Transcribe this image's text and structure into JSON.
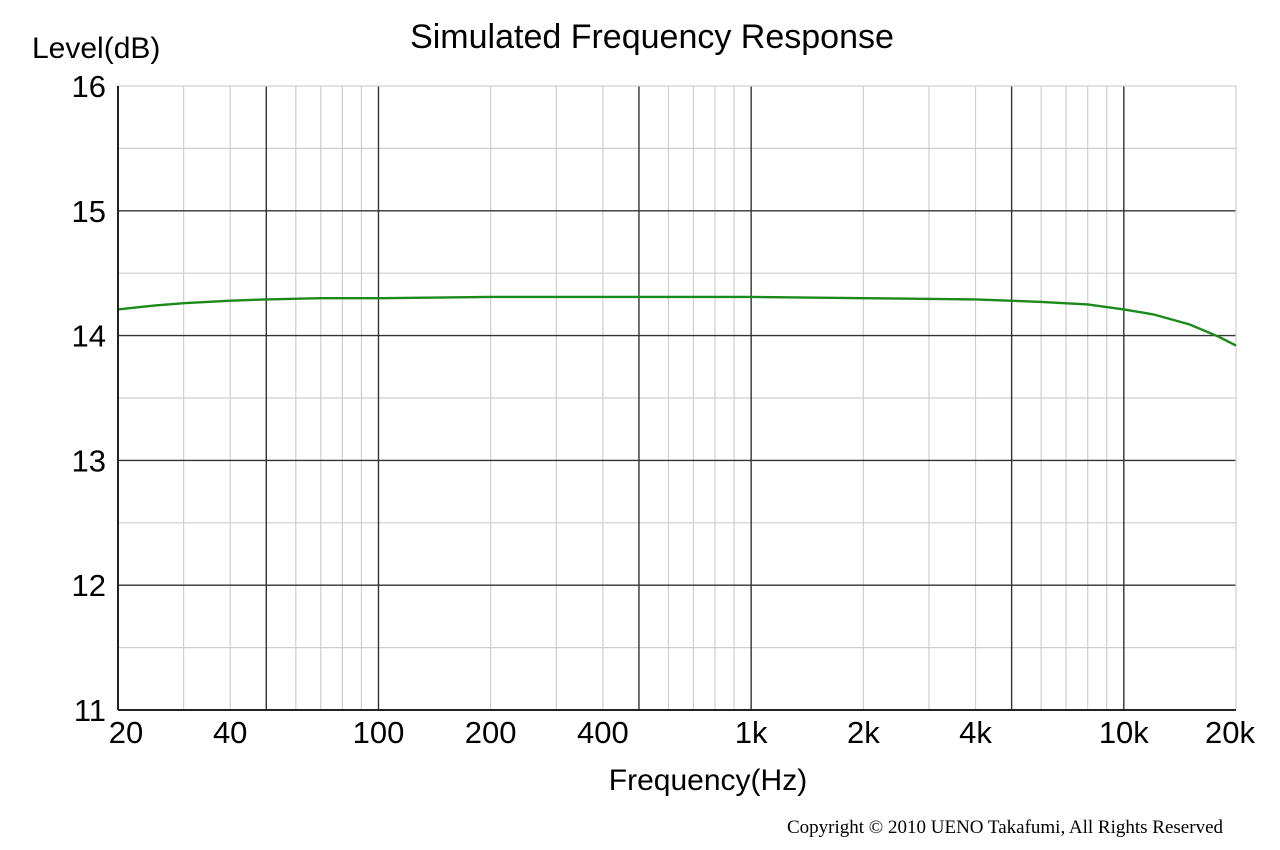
{
  "chart_data": {
    "type": "line",
    "title": "Simulated Frequency Response",
    "xlabel": "Frequency(Hz)",
    "ylabel": "Level(dB)",
    "x_scale": "log",
    "xlim": [
      20,
      20000
    ],
    "ylim": [
      11,
      16
    ],
    "x_ticks": [
      {
        "value": 20,
        "label": "20"
      },
      {
        "value": 40,
        "label": "40"
      },
      {
        "value": 100,
        "label": "100"
      },
      {
        "value": 200,
        "label": "200"
      },
      {
        "value": 400,
        "label": "400"
      },
      {
        "value": 1000,
        "label": "1k"
      },
      {
        "value": 2000,
        "label": "2k"
      },
      {
        "value": 4000,
        "label": "4k"
      },
      {
        "value": 10000,
        "label": "10k"
      },
      {
        "value": 20000,
        "label": "20k"
      }
    ],
    "y_ticks": [
      {
        "value": 11,
        "label": "11"
      },
      {
        "value": 12,
        "label": "12"
      },
      {
        "value": 13,
        "label": "13"
      },
      {
        "value": 14,
        "label": "14"
      },
      {
        "value": 15,
        "label": "15"
      },
      {
        "value": 16,
        "label": "16"
      }
    ],
    "grid": true,
    "series": [
      {
        "color": "#1a8a1a",
        "x": [
          20,
          25,
          30,
          40,
          50,
          70,
          100,
          200,
          500,
          1000,
          2000,
          4000,
          6000,
          8000,
          10000,
          12000,
          15000,
          18000,
          20000
        ],
        "values": [
          14.21,
          14.24,
          14.26,
          14.28,
          14.29,
          14.3,
          14.3,
          14.31,
          14.31,
          14.31,
          14.3,
          14.29,
          14.27,
          14.25,
          14.21,
          14.17,
          14.09,
          13.99,
          13.92
        ]
      }
    ]
  },
  "footer": {
    "copyright": "Copyright © 2010 UENO Takafumi, All Rights Reserved"
  }
}
